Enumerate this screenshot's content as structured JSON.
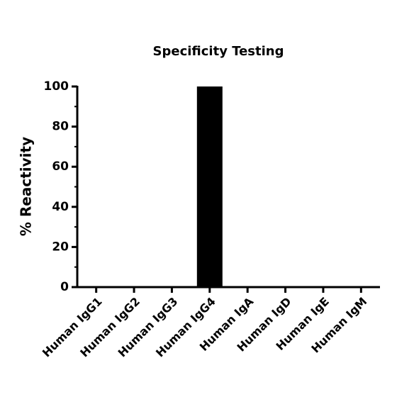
{
  "chart_data": {
    "type": "bar",
    "title": "Specificity Testing",
    "y_label": "% Reactivity",
    "categories": [
      "Human IgG1",
      "Human IgG2",
      "Human IgG3",
      "Human IgG4",
      "Human IgA",
      "Human IgD",
      "Human IgE",
      "Human IgM"
    ],
    "values": [
      0,
      0,
      0,
      100,
      0,
      0,
      0,
      0
    ],
    "color": "#000000",
    "ylim": [
      0,
      100
    ],
    "yticks": [
      0,
      20,
      40,
      60,
      80,
      100
    ],
    "yminorticks": [
      10,
      30,
      50,
      70,
      90
    ],
    "grid": false
  }
}
